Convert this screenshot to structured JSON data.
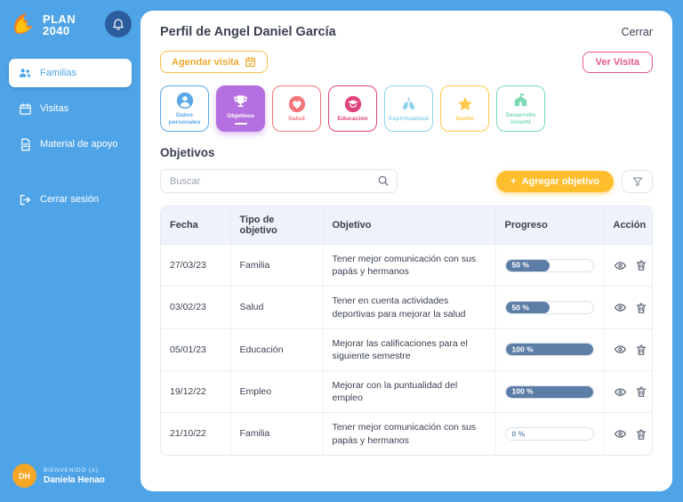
{
  "colors": {
    "primary_blue": "#4FA4E8",
    "dark_blue": "#2B5C9B",
    "accent_yellow": "#FFBE2D",
    "accent_pink": "#E8578A",
    "accent_orange": "#EFA92F",
    "progress_fill": "#5C7DA6",
    "avatar_orange": "#F5A623"
  },
  "sidebar": {
    "logo_line1": "PLAN",
    "logo_line2": "2040",
    "items": [
      {
        "label": "Familias",
        "active": true
      },
      {
        "label": "Visitas",
        "active": false
      },
      {
        "label": "Material de apoyo",
        "active": false
      },
      {
        "label": "Cerrar sesión",
        "active": false
      }
    ],
    "user": {
      "initials": "DH",
      "welcome": "BIENVENIDO (A)",
      "name": "Daniela Henao"
    }
  },
  "header": {
    "title": "Perfil de Angel Daniel García",
    "close": "Cerrar"
  },
  "toolbar": {
    "schedule_visit": "Agendar visita",
    "view_visit": "Ver Visita"
  },
  "tabs": [
    {
      "label": "Datos personales",
      "color": "#5BA7E8",
      "active": false
    },
    {
      "label": "Objetivos",
      "color": "#B46FE0",
      "active": true
    },
    {
      "label": "Salud",
      "color": "#F4777C",
      "active": false
    },
    {
      "label": "Educación",
      "color": "#E0447C",
      "active": false
    },
    {
      "label": "Espiritualidad",
      "color": "#8ED3EC",
      "active": false
    },
    {
      "label": "Sueño",
      "color": "#FFC94D",
      "active": false
    },
    {
      "label": "Desarrollo infantil",
      "color": "#7BDBB0",
      "active": false
    }
  ],
  "section_title": "Objetivos",
  "search": {
    "placeholder": "Buscar"
  },
  "add_objective": {
    "plus": "+",
    "label": "Agregar objetivo"
  },
  "table": {
    "headers": {
      "date": "Fecha",
      "type": "Tipo de objetivo",
      "objective": "Objetivo",
      "progress": "Progreso",
      "action": "Acción"
    },
    "rows": [
      {
        "date": "27/03/23",
        "type": "Familia",
        "objective": "Tener mejor comunicación con sus papás y hermanos",
        "progress": 50,
        "progress_label": "50 %"
      },
      {
        "date": "03/02/23",
        "type": "Salud",
        "objective": "Tener en cuenta actividades deportivas para mejorar la salud",
        "progress": 50,
        "progress_label": "50 %"
      },
      {
        "date": "05/01/23",
        "type": "Educación",
        "objective": "Mejorar las calificaciones para el siguiente semestre",
        "progress": 100,
        "progress_label": "100 %"
      },
      {
        "date": "19/12/22",
        "type": "Empleo",
        "objective": "Mejorar con la puntualidad del empleo",
        "progress": 100,
        "progress_label": "100 %"
      },
      {
        "date": "21/10/22",
        "type": "Familia",
        "objective": "Tener mejor comunicación con sus papás y hermanos",
        "progress": 0,
        "progress_label": "0 %"
      }
    ]
  }
}
